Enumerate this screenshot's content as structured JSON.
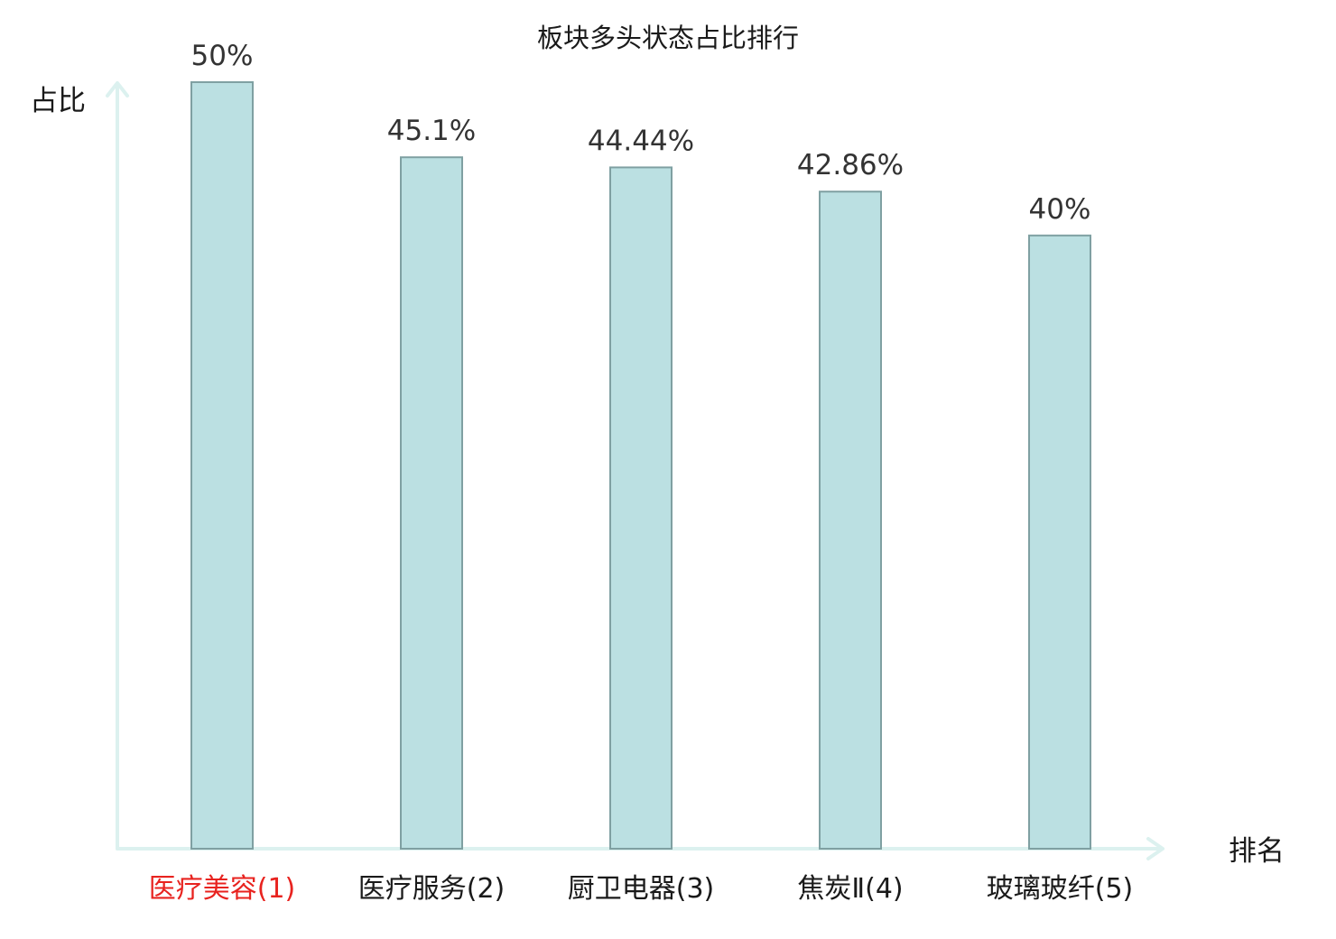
{
  "chart_data": {
    "type": "bar",
    "title": "板块多头状态占比排行",
    "ylabel": "占比",
    "xlabel": "排名",
    "categories": [
      "医疗美容(1)",
      "医疗服务(2)",
      "厨卫电器(3)",
      "焦炭Ⅱ(4)",
      "玻璃玻纤(5)"
    ],
    "values": [
      50,
      45.1,
      44.44,
      42.86,
      40
    ],
    "value_labels": [
      "50%",
      "45.1%",
      "44.44%",
      "42.86%",
      "40%"
    ],
    "ylim": [
      0,
      50
    ],
    "grid": false,
    "highlight_index": 0
  },
  "colors": {
    "bar_fill": "#bbe0e2",
    "bar_stroke": "#7fa0a2",
    "axis": "#dcf1ef",
    "highlight_label": "#e8231f",
    "normal_label": "#1a1a1a"
  }
}
